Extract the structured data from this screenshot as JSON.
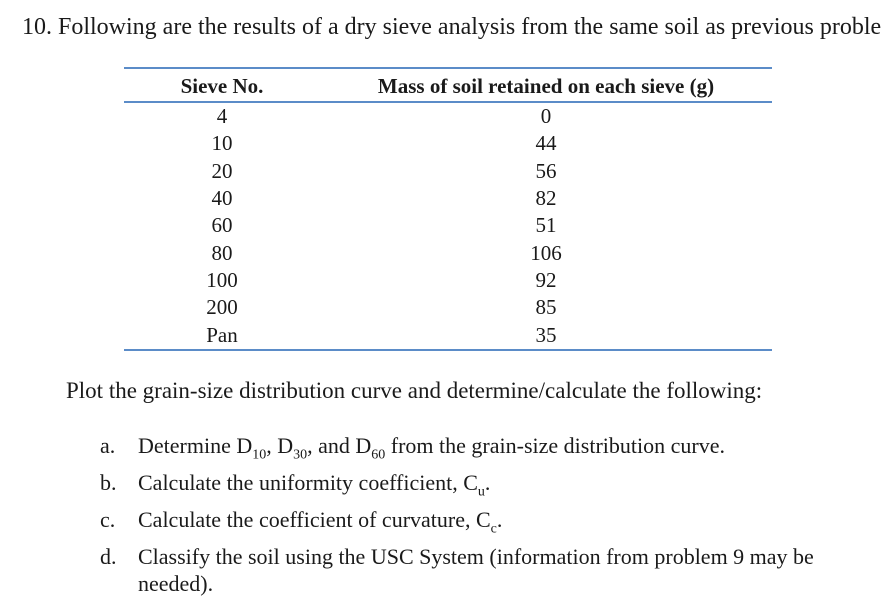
{
  "heading": "10. Following are the results of a dry sieve analysis from the same soil as previous proble",
  "table": {
    "headers": [
      "Sieve No.",
      "Mass of soil retained on each sieve (g)"
    ],
    "rows": [
      [
        "4",
        "0"
      ],
      [
        "10",
        "44"
      ],
      [
        "20",
        "56"
      ],
      [
        "40",
        "82"
      ],
      [
        "60",
        "51"
      ],
      [
        "80",
        "106"
      ],
      [
        "100",
        "92"
      ],
      [
        "200",
        "85"
      ],
      [
        "Pan",
        "35"
      ]
    ]
  },
  "prompt": "Plot the grain-size distribution curve and determine/calculate the following:",
  "items": [
    {
      "marker": "a.",
      "text_before": "Determine D",
      "sub1": "10",
      "mid1": ", D",
      "sub2": "30",
      "mid2": ", and D",
      "sub3": "60",
      "text_after": " from the grain-size distribution curve."
    },
    {
      "marker": "b.",
      "text_before": "Calculate the uniformity coefficient, C",
      "sub1": "u",
      "text_after": "."
    },
    {
      "marker": "c.",
      "text_before": "Calculate the coefficient of curvature, C",
      "sub1": "c",
      "text_after": "."
    },
    {
      "marker": "d.",
      "text": "Classify the soil using the USC System  (information from problem 9 may be needed)."
    }
  ]
}
